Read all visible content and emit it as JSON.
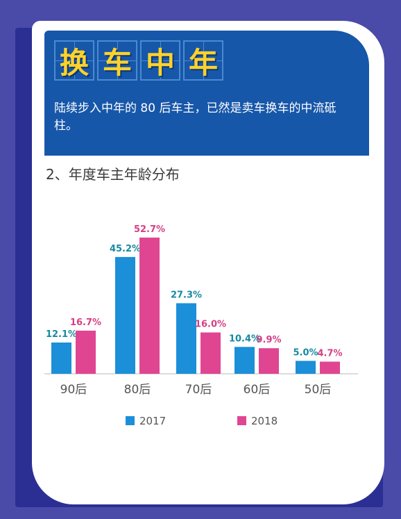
{
  "header": {
    "title_chars": [
      "换",
      "车",
      "中",
      "年"
    ],
    "description": "陆续步入中年的 80 后车主，已然是卖车换车的中流砥柱。"
  },
  "subtitle": "2、年度车主年龄分布",
  "colors": {
    "page_bg": "#4a4aa8",
    "header_bg": "#1757a9",
    "title_yellow": "#ffd22a",
    "series_2017": "#1b8fd8",
    "series_2018": "#e04592",
    "label_2017": "#178aa0",
    "label_2018": "#d43f84"
  },
  "chart_data": {
    "type": "bar",
    "categories": [
      "90后",
      "80后",
      "70后",
      "60后",
      "50后"
    ],
    "series": [
      {
        "name": "2017",
        "values": [
          12.1,
          45.2,
          27.3,
          10.4,
          5.0
        ],
        "labels": [
          "12.1%",
          "45.2%",
          "27.3%",
          "10.4%",
          "5.0%"
        ]
      },
      {
        "name": "2018",
        "values": [
          16.7,
          52.7,
          16.0,
          9.9,
          4.7
        ],
        "labels": [
          "16.7%",
          "52.7%",
          "16.0%",
          "9.9%",
          "4.7%"
        ]
      }
    ],
    "legend_position": "bottom",
    "grid": false,
    "ylim": [
      0,
      60
    ]
  }
}
